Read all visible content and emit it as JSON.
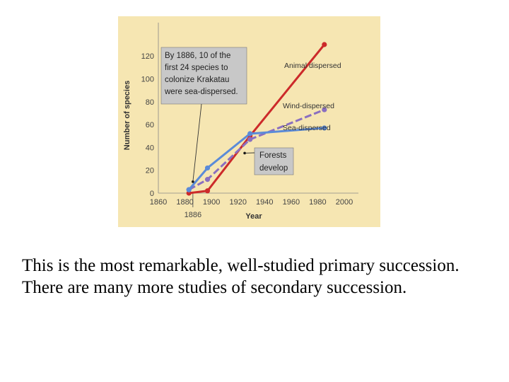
{
  "caption": "This is the most remarkable, well-studied primary succession. There are many more studies of secondary succession.",
  "colors": {
    "background": "#f6e6b2",
    "animal": "#cc2a2a",
    "wind": "#8a6fc0",
    "sea": "#5b8bd8",
    "note_box": "#c8c8c8"
  },
  "chart_data": {
    "type": "line",
    "title": "",
    "xlabel": "Year",
    "ylabel": "Number of species",
    "xlim": [
      1860,
      2000
    ],
    "ylim": [
      0,
      130
    ],
    "x_ticks": [
      "1860",
      "1880",
      "1900",
      "1920",
      "1940",
      "1960",
      "1980",
      "2000"
    ],
    "y_ticks": [
      "0",
      "20",
      "40",
      "60",
      "80",
      "100",
      "120"
    ],
    "extra_x_label": "1886",
    "grid": false,
    "series": [
      {
        "name": "Animal dispersed",
        "x": [
          1883,
          1897,
          1929,
          1985
        ],
        "y": [
          0,
          2,
          50,
          130
        ]
      },
      {
        "name": "Wind-dispersed",
        "x": [
          1883,
          1897,
          1929,
          1985
        ],
        "y": [
          3,
          12,
          47,
          73
        ]
      },
      {
        "name": "Sea-dispersed",
        "x": [
          1883,
          1897,
          1929,
          1985
        ],
        "y": [
          3,
          22,
          52,
          57
        ]
      }
    ],
    "annotations": [
      {
        "text": "By 1886, 10 of the first 24 species to colonize Krakatau were sea-dispersed.",
        "x": 1886,
        "y": 10
      },
      {
        "text": "Forests develop",
        "x": 1925,
        "y": 35
      }
    ]
  }
}
